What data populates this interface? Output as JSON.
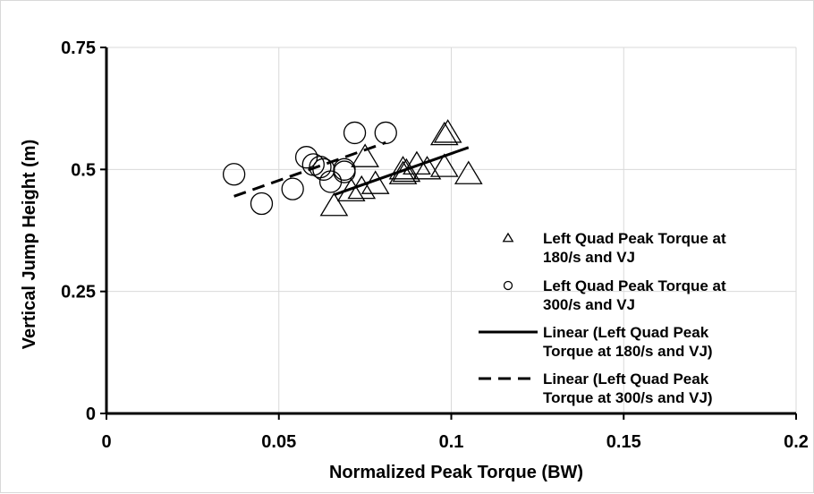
{
  "chart_data": {
    "type": "scatter",
    "xlabel": "Normalized Peak Torque (BW)",
    "ylabel": "Vertical Jump Height (m)",
    "xlim": [
      0,
      0.2
    ],
    "ylim": [
      0,
      0.75
    ],
    "x_ticks": [
      0,
      0.05,
      0.1,
      0.15,
      0.2
    ],
    "y_ticks": [
      0,
      0.25,
      0.5,
      0.75
    ],
    "x_tick_labels": [
      "0",
      "0.05",
      "0.1",
      "0.15",
      "0.2"
    ],
    "y_tick_labels": [
      "0",
      "0.25",
      "0.5",
      "0.75"
    ],
    "grid": true,
    "legend_position": "right",
    "series": [
      {
        "name": "Left Quad Peak Torque at 180/s and VJ",
        "marker": "triangle",
        "points": [
          [
            0.066,
            0.425
          ],
          [
            0.071,
            0.455
          ],
          [
            0.074,
            0.46
          ],
          [
            0.075,
            0.525
          ],
          [
            0.078,
            0.47
          ],
          [
            0.086,
            0.49
          ],
          [
            0.087,
            0.495
          ],
          [
            0.086,
            0.5
          ],
          [
            0.09,
            0.51
          ],
          [
            0.093,
            0.5
          ],
          [
            0.098,
            0.505
          ],
          [
            0.098,
            0.57
          ],
          [
            0.099,
            0.575
          ],
          [
            0.105,
            0.49
          ]
        ]
      },
      {
        "name": "Left Quad Peak Torque at 300/s and VJ",
        "marker": "circle",
        "points": [
          [
            0.037,
            0.49
          ],
          [
            0.045,
            0.43
          ],
          [
            0.054,
            0.46
          ],
          [
            0.058,
            0.525
          ],
          [
            0.06,
            0.51
          ],
          [
            0.062,
            0.505
          ],
          [
            0.063,
            0.5
          ],
          [
            0.065,
            0.475
          ],
          [
            0.069,
            0.5
          ],
          [
            0.069,
            0.495
          ],
          [
            0.072,
            0.575
          ],
          [
            0.081,
            0.575
          ]
        ]
      }
    ],
    "trendlines": [
      {
        "name": "Linear (Left Quad Peak Torque at 180/s and VJ)",
        "style": "solid",
        "x": [
          0.066,
          0.105
        ],
        "y": [
          0.448,
          0.545
        ]
      },
      {
        "name": "Linear (Left Quad Peak Torque at 300/s and VJ)",
        "style": "dashed",
        "x": [
          0.037,
          0.081
        ],
        "y": [
          0.445,
          0.555
        ]
      }
    ],
    "legend": [
      {
        "marker": "triangle",
        "lines": [
          "Left Quad Peak Torque at",
          "180/s and VJ"
        ]
      },
      {
        "marker": "circle",
        "lines": [
          "Left Quad Peak Torque at",
          "300/s and VJ"
        ]
      },
      {
        "marker": "solid-line",
        "lines": [
          "Linear (Left Quad Peak",
          "Torque at 180/s and VJ)"
        ]
      },
      {
        "marker": "dashed-line",
        "lines": [
          "Linear (Left Quad Peak",
          "Torque at 300/s and VJ)"
        ]
      }
    ],
    "colors": {
      "marker_stroke": "#000000",
      "marker_fill": "#ffffff",
      "grid": "#d9d9d9",
      "axis": "#000000"
    }
  }
}
